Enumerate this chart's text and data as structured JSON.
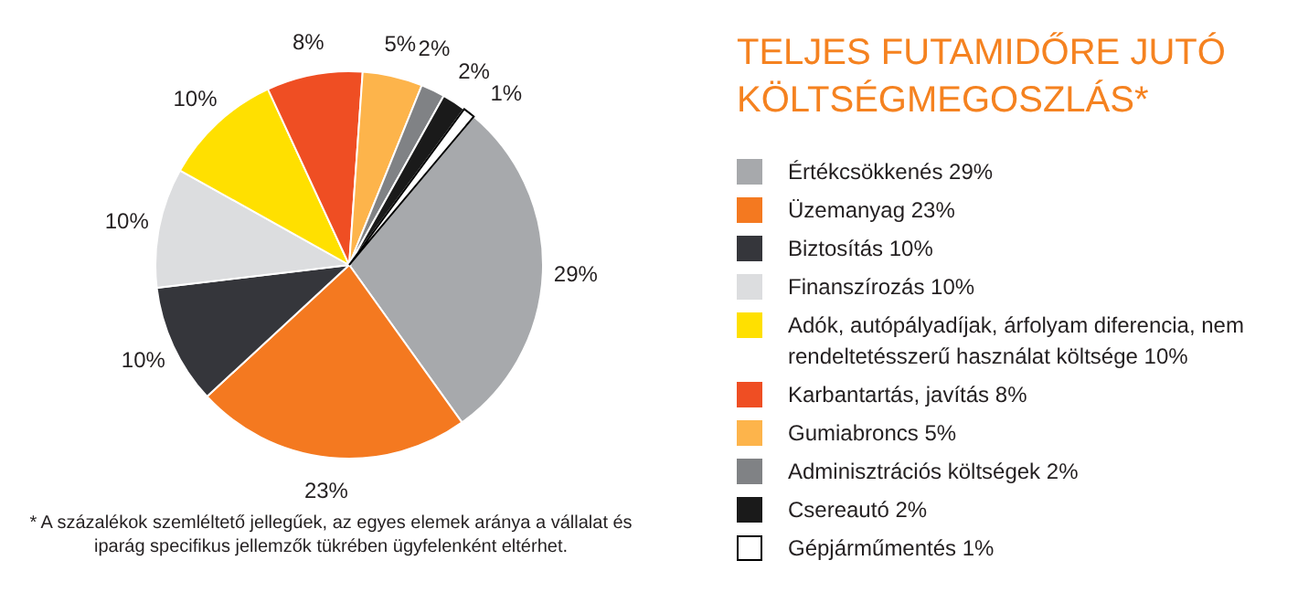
{
  "chart_data": {
    "type": "pie",
    "title": "TELJES FUTAMIDŐRE JUTÓ KÖLTSÉGMEGOSZLÁS*",
    "categories": [
      "Értékcsökkenés",
      "Üzemanyag",
      "Biztosítás",
      "Finanszírozás",
      "Adók, autópályadíjak, árfolyam diferencia, nem rendeltetésszerű használat költsége",
      "Karbantartás, javítás",
      "Gumiabroncs",
      "Adminisztrációs költségek",
      "Csereautó",
      "Gépjárműmentés"
    ],
    "values": [
      29,
      23,
      10,
      10,
      10,
      8,
      5,
      2,
      2,
      1
    ],
    "value_labels": [
      "29%",
      "23%",
      "10%",
      "10%",
      "10%",
      "8%",
      "5%",
      "2%",
      "2%",
      "1%"
    ],
    "colors": [
      "#a7a9ac",
      "#f47920",
      "#35363b",
      "#dcdddf",
      "#ffe000",
      "#ef4e23",
      "#fdb44b",
      "#808285",
      "#1a1a1a",
      "#ffffff"
    ],
    "legend": "right",
    "annotations": [
      "* A százalékok szemléltető jellegűek, az egyes elemek aránya a vállalat és iparág specifikus jellemzők tükrében ügyfelenként eltérhet."
    ]
  }
}
